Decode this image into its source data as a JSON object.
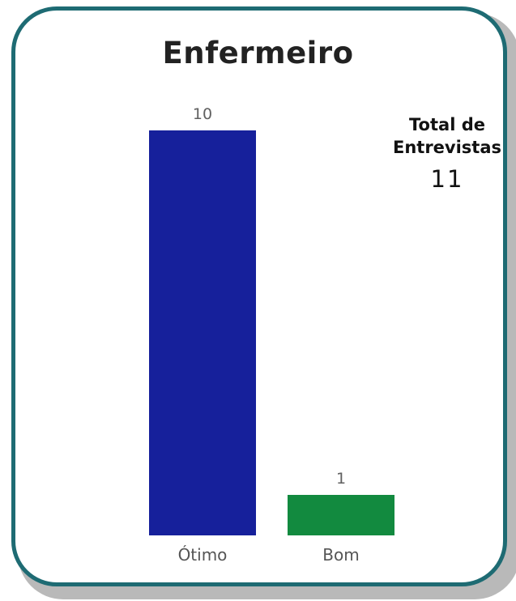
{
  "colors": {
    "border": "#1e6b73",
    "bar_otimo": "#16209b",
    "bar_bom": "#128a3f"
  },
  "kpi": {
    "label": "Total de Entrevistas",
    "value": "11"
  },
  "chart_data": {
    "type": "bar",
    "title": "Enfermeiro",
    "categories": [
      "Ótimo",
      "Bom"
    ],
    "values": [
      10,
      1
    ],
    "colors": [
      "#16209b",
      "#128a3f"
    ],
    "xlabel": "",
    "ylabel": "",
    "ylim": [
      0,
      10
    ],
    "grid": false,
    "legend": "none"
  }
}
